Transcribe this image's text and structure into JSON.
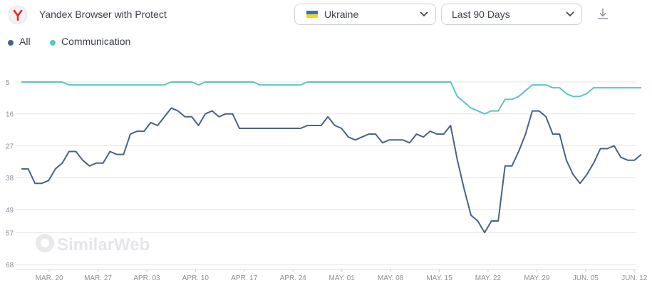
{
  "app": {
    "name": "Yandex Browser with Protect"
  },
  "filters": {
    "country": "Ukraine",
    "period": "Last 90 Days"
  },
  "colors": {
    "all": "#4a6285",
    "communication": "#5bc7bd",
    "logo_red": "#e52a2a",
    "grid": "#e6e6e6",
    "flag_blue": "#2f6fd6",
    "flag_yellow": "#f7d21a"
  },
  "icons": {
    "logo": "yandex-y-icon",
    "flag": "ukraine-flag-icon",
    "chevron": "chevron-down-icon",
    "download": "download-icon"
  },
  "watermark": "SimilarWeb",
  "chart_data": {
    "type": "line",
    "title": "",
    "xlabel": "",
    "ylabel": "",
    "y_reversed": true,
    "ylim": [
      5,
      68
    ],
    "y_ticks": [
      "5",
      "16",
      "27",
      "38",
      "49",
      "57",
      "68"
    ],
    "x_ticks": [
      "MAR. 20",
      "MAR. 27",
      "APR. 03",
      "APR. 10",
      "APR. 17",
      "APR. 24",
      "MAY. 01",
      "MAY. 08",
      "MAY. 15",
      "MAY. 22",
      "MAY. 29",
      "JUN. 05",
      "JUN. 12"
    ],
    "x_start": "2022-03-16",
    "x_end": "2022-06-13",
    "legend": "top-left",
    "grid": true,
    "series": [
      {
        "name": "All",
        "key": "all",
        "values": [
          35,
          35,
          40,
          40,
          39,
          35,
          33,
          29,
          29,
          32,
          34,
          33,
          33,
          29,
          30,
          30,
          23,
          22,
          22,
          19,
          20,
          17,
          14,
          15,
          17,
          17,
          20,
          16,
          15,
          17,
          16,
          16,
          21,
          21,
          21,
          21,
          21,
          21,
          21,
          21,
          21,
          21,
          20,
          20,
          20,
          17,
          20,
          21,
          24,
          25,
          24,
          23,
          23,
          26,
          25,
          25,
          25,
          26,
          23,
          24,
          22,
          23,
          23,
          20,
          32,
          42,
          51,
          53,
          57,
          53,
          53,
          34,
          34,
          29,
          23,
          15,
          15,
          17,
          23,
          23,
          32,
          37,
          40,
          37,
          33,
          28,
          28,
          27,
          31,
          32,
          32,
          30
        ]
      },
      {
        "name": "Communication",
        "key": "communication",
        "values": [
          5,
          5,
          5,
          5,
          5,
          5,
          5,
          6,
          6,
          6,
          6,
          6,
          6,
          6,
          6,
          6,
          6,
          6,
          6,
          6,
          6,
          6,
          5,
          5,
          5,
          5,
          6,
          5,
          5,
          5,
          5,
          5,
          5,
          5,
          5,
          6,
          6,
          6,
          6,
          6,
          6,
          6,
          5,
          5,
          5,
          5,
          5,
          5,
          5,
          5,
          5,
          5,
          5,
          5,
          5,
          5,
          5,
          5,
          5,
          5,
          5,
          5,
          5,
          5,
          10,
          12,
          14,
          15,
          16,
          15,
          15,
          11,
          11,
          10,
          8,
          6,
          6,
          6,
          7,
          7,
          9,
          10,
          10,
          9,
          7,
          7,
          7,
          7,
          7,
          7,
          7,
          7
        ]
      }
    ]
  }
}
